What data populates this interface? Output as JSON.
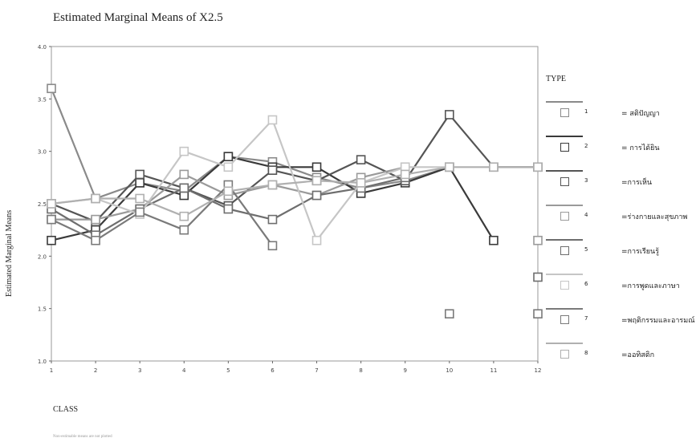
{
  "chart_data": {
    "type": "line",
    "title": "Estimated Marginal Means of X2.5",
    "xlabel": "CLASS",
    "ylabel": "Estimated Marginal Means",
    "legend_title": "TYPE",
    "legend_position": "right",
    "grid": false,
    "x": [
      1,
      2,
      3,
      4,
      5,
      6,
      7,
      8,
      9,
      10,
      11,
      12
    ],
    "x_ticks": [
      "1",
      "2",
      "3",
      "4",
      "5",
      "6",
      "7",
      "8",
      "9",
      "10",
      "11",
      "12"
    ],
    "y_ticks": [
      "1.0",
      "1.5",
      "2.0",
      "2.5",
      "3.0",
      "3.5",
      "4.0"
    ],
    "ylim": [
      1.0,
      4.0
    ],
    "series": [
      {
        "name": "1",
        "label": "= สติปัญญา",
        "color": "#8a8a8a",
        "values": [
          3.6,
          2.55,
          2.7,
          2.62,
          2.95,
          2.9,
          2.75,
          2.65,
          2.72,
          2.85,
          null,
          null
        ]
      },
      {
        "name": "2",
        "label": "= การได้ยิน",
        "color": "#3a3a3a",
        "values": [
          2.15,
          2.25,
          2.7,
          2.58,
          2.95,
          2.85,
          2.85,
          2.6,
          2.7,
          2.85,
          2.15,
          null
        ]
      },
      {
        "name": "3",
        "label": "=การเห็น",
        "color": "#555555",
        "values": [
          2.5,
          2.33,
          2.78,
          2.65,
          2.48,
          2.82,
          2.72,
          2.92,
          2.72,
          3.35,
          2.85,
          2.85
        ]
      },
      {
        "name": "4",
        "label": "=ร่างกายและสุขภาพ",
        "color": "#9a9a9a",
        "values": [
          2.35,
          2.35,
          2.45,
          2.78,
          2.58,
          2.68,
          2.58,
          2.75,
          2.85,
          null,
          null,
          2.15
        ]
      },
      {
        "name": "5",
        "label": "=การเรียนรู้",
        "color": "#6e6e6e",
        "values": [
          2.45,
          2.2,
          2.45,
          2.65,
          2.45,
          2.35,
          2.58,
          2.65,
          2.75,
          null,
          null,
          1.8
        ]
      },
      {
        "name": "6",
        "label": "=การพูดและภาษา",
        "color": "#c6c6c6",
        "values": [
          2.5,
          2.55,
          2.4,
          3.0,
          2.85,
          3.3,
          2.15,
          2.7,
          2.85,
          2.85,
          null,
          null
        ]
      },
      {
        "name": "7",
        "label": "=พฤติกรรมและอารมณ์",
        "color": "#7a7a7a",
        "values": [
          2.35,
          2.15,
          2.42,
          2.25,
          2.68,
          2.1,
          null,
          null,
          null,
          1.45,
          null,
          1.45
        ]
      },
      {
        "name": "8",
        "label": "=ออทิสติก",
        "color": "#b0b0b0",
        "values": [
          2.5,
          2.55,
          2.55,
          2.38,
          2.62,
          2.68,
          2.72,
          2.7,
          2.78,
          2.85,
          2.85,
          2.85
        ]
      }
    ]
  },
  "footnote": "Non-estimable means are not plotted"
}
